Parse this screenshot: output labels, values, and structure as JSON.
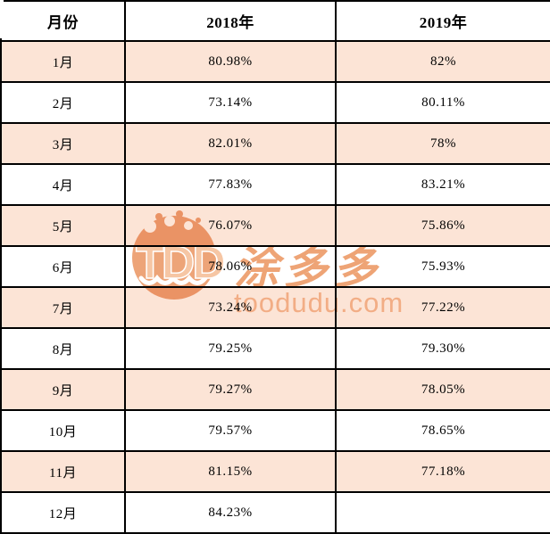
{
  "table": {
    "columns": [
      "月份",
      "2018年",
      "2019年"
    ],
    "rows": [
      {
        "month": "1月",
        "y2018": "80.98%",
        "y2019": "82%"
      },
      {
        "month": "2月",
        "y2018": "73.14%",
        "y2019": "80.11%"
      },
      {
        "month": "3月",
        "y2018": "82.01%",
        "y2019": "78%"
      },
      {
        "month": "4月",
        "y2018": "77.83%",
        "y2019": "83.21%"
      },
      {
        "month": "5月",
        "y2018": "76.07%",
        "y2019": "75.86%"
      },
      {
        "month": "6月",
        "y2018": "78.06%",
        "y2019": "75.93%"
      },
      {
        "month": "7月",
        "y2018": "73.24%",
        "y2019": "77.22%"
      },
      {
        "month": "8月",
        "y2018": "79.25%",
        "y2019": "79.30%"
      },
      {
        "month": "9月",
        "y2018": "79.27%",
        "y2019": "78.05%"
      },
      {
        "month": "10月",
        "y2018": "79.57%",
        "y2019": "78.65%"
      },
      {
        "month": "11月",
        "y2018": "81.15%",
        "y2019": "77.18%"
      },
      {
        "month": "12月",
        "y2018": "84.23%",
        "y2019": ""
      }
    ]
  },
  "chart_data": {
    "type": "table",
    "title": "",
    "categories": [
      "1月",
      "2月",
      "3月",
      "4月",
      "5月",
      "6月",
      "7月",
      "8月",
      "9月",
      "10月",
      "11月",
      "12月"
    ],
    "series": [
      {
        "name": "2018年",
        "values": [
          80.98,
          73.14,
          82.01,
          77.83,
          76.07,
          78.06,
          73.24,
          79.25,
          79.27,
          79.57,
          81.15,
          84.23
        ]
      },
      {
        "name": "2019年",
        "values": [
          82,
          80.11,
          78,
          83.21,
          75.86,
          75.93,
          77.22,
          79.3,
          78.05,
          78.65,
          77.18,
          null
        ]
      }
    ],
    "unit": "%",
    "layout": {
      "header_row": true,
      "grid": "black 2px borders",
      "highlight_rows": "odd months shaded peach"
    }
  },
  "watermark": {
    "logo_text": "TDD",
    "brand_text": "涂多多",
    "domain_text": "toodudu.com"
  },
  "colors": {
    "highlight_row": "#FCE4D6",
    "border": "#000000",
    "header_text": "#000000",
    "watermark_circle": "#EDA478",
    "watermark_logo_text": "#F6C6A4",
    "watermark_brand": "#EEA476",
    "watermark_domain": "#F5C29E"
  }
}
